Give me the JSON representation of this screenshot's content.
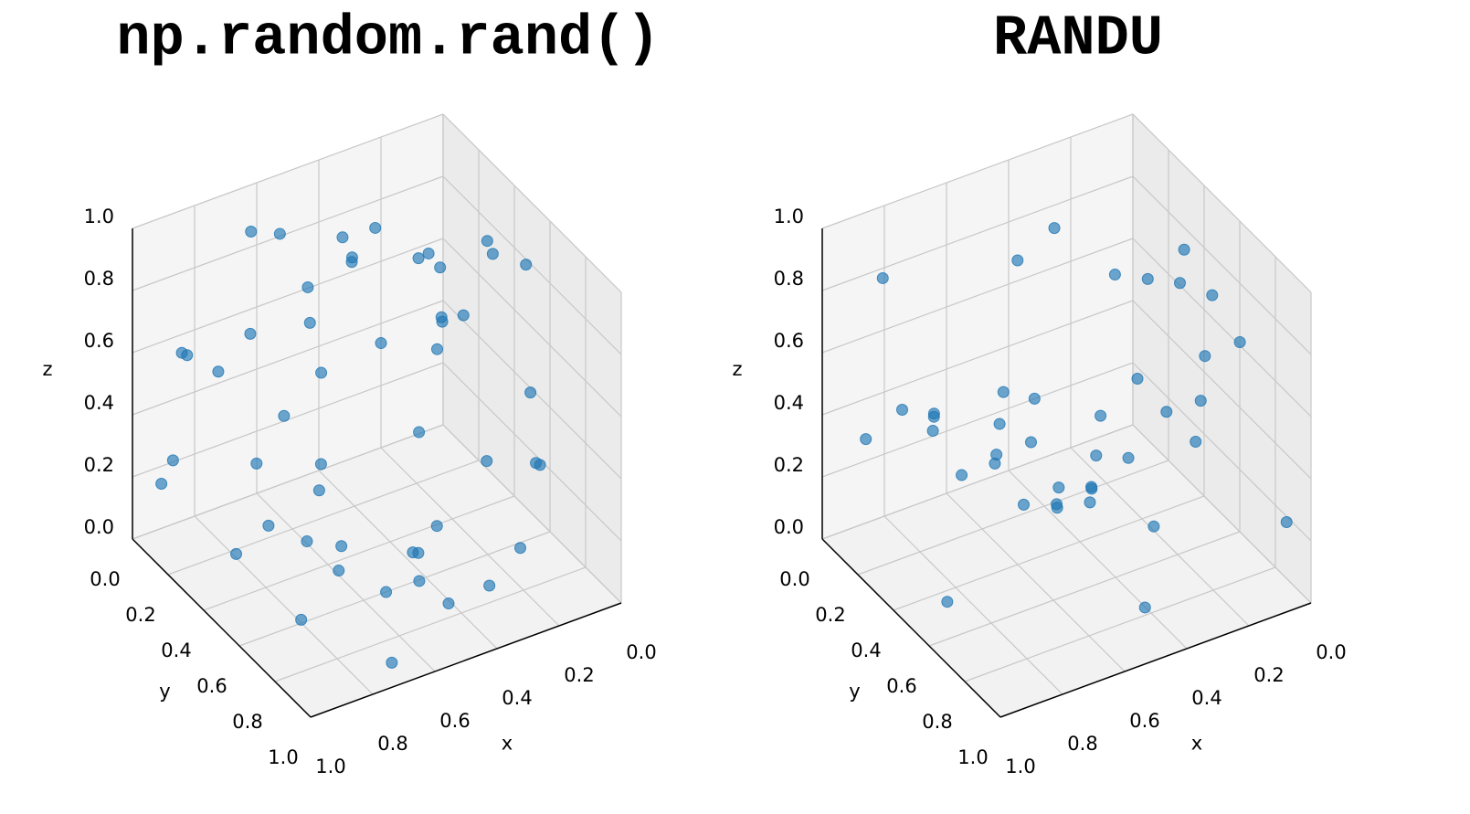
{
  "chart_data": [
    {
      "type": "scatter3d",
      "title": "np.random.rand()",
      "xlabel": "x",
      "ylabel": "y",
      "zlabel": "z",
      "color": "#1f77b4",
      "xlim": [
        0,
        1
      ],
      "ylim": [
        0,
        1
      ],
      "zlim": [
        0,
        1
      ],
      "xticks": [
        {
          "value": 0,
          "label": "0.0"
        },
        0.2,
        0.4,
        0.6,
        0.8,
        {
          "value": 1,
          "label": "1.0"
        }
      ],
      "yticks": [
        {
          "value": 0,
          "label": "0.0"
        },
        0.2,
        0.4,
        0.6,
        0.8,
        {
          "value": 1,
          "label": "1.0"
        }
      ],
      "zticks": [
        {
          "value": 0,
          "label": "0.0"
        },
        0.2,
        0.4,
        0.6,
        0.8,
        {
          "value": 1,
          "label": "1.0"
        }
      ],
      "x": [
        0.12,
        0.85,
        0.43,
        0.67,
        0.21,
        0.93,
        0.38,
        0.55,
        0.07,
        0.76,
        0.31,
        0.62,
        0.49,
        0.88,
        0.15,
        0.71,
        0.26,
        0.59,
        0.97,
        0.04,
        0.81,
        0.35,
        0.47,
        0.68,
        0.19,
        0.53,
        0.91,
        0.28,
        0.74,
        0.09,
        0.64,
        0.41,
        0.83,
        0.23,
        0.57,
        0.16,
        0.79,
        0.33,
        0.95,
        0.51,
        0.02,
        0.69,
        0.45,
        0.87,
        0.13,
        0.6,
        0.37,
        0.78,
        0.25,
        0.99
      ],
      "y": [
        0.73,
        0.22,
        0.58,
        0.09,
        0.91,
        0.46,
        0.15,
        0.82,
        0.37,
        0.64,
        0.03,
        0.51,
        0.29,
        0.77,
        0.18,
        0.95,
        0.42,
        0.68,
        0.11,
        0.56,
        0.33,
        0.87,
        0.06,
        0.49,
        0.61,
        0.24,
        0.79,
        0.35,
        0.97,
        0.14,
        0.53,
        0.71,
        0.4,
        0.02,
        0.86,
        0.27,
        0.63,
        0.44,
        0.19,
        0.92,
        0.5,
        0.31,
        0.75,
        0.08,
        0.66,
        0.13,
        0.89,
        0.38,
        0.55,
        0.21
      ],
      "z": [
        0.34,
        0.61,
        0.08,
        0.92,
        0.47,
        0.19,
        0.75,
        0.26,
        0.83,
        0.52,
        0.67,
        0.13,
        0.95,
        0.39,
        0.71,
        0.04,
        0.58,
        0.87,
        0.23,
        0.44,
        0.78,
        0.11,
        0.65,
        0.32,
        0.97,
        0.5,
        0.16,
        0.84,
        0.29,
        0.62,
        0.07,
        0.89,
        0.41,
        0.73,
        0.2,
        0.56,
        0.98,
        0.35,
        0.69,
        0.14,
        0.81,
        0.46,
        0.27,
        0.59,
        0.03,
        0.91,
        0.53,
        0.18,
        0.76,
        0.37
      ]
    },
    {
      "type": "scatter3d",
      "title": "RANDU",
      "xlabel": "x",
      "ylabel": "y",
      "zlabel": "z",
      "color": "#1f77b4",
      "xlim": [
        0,
        1
      ],
      "ylim": [
        0,
        1
      ],
      "zlim": [
        0,
        1
      ],
      "xticks": [
        {
          "value": 0,
          "label": "0.0"
        },
        0.2,
        0.4,
        0.6,
        0.8,
        {
          "value": 1,
          "label": "1.0"
        }
      ],
      "yticks": [
        {
          "value": 0,
          "label": "0.0"
        },
        0.2,
        0.4,
        0.6,
        0.8,
        {
          "value": 1,
          "label": "1.0"
        }
      ],
      "zticks": [
        {
          "value": 0,
          "label": "0.0"
        },
        0.2,
        0.4,
        0.6,
        0.8,
        {
          "value": 1,
          "label": "1.0"
        }
      ],
      "x": [
        0.1,
        0.5,
        0.25,
        0.8,
        0.33,
        0.62,
        0.05,
        0.91,
        0.44,
        0.17,
        0.73,
        0.58,
        0.29,
        0.96,
        0.12,
        0.67,
        0.38,
        0.85,
        0.21,
        0.54,
        0.03,
        0.77,
        0.46,
        0.89,
        0.15,
        0.69,
        0.31,
        0.6,
        0.08,
        0.94,
        0.41,
        0.71,
        0.19,
        0.52,
        0.84,
        0.27,
        0.64,
        0.36,
        0.99,
        0.02
      ],
      "y": [
        0.2,
        0.3,
        0.7,
        0.1,
        0.55,
        0.84,
        0.95,
        0.47,
        0.12,
        0.38,
        0.66,
        0.05,
        0.91,
        0.27,
        0.59,
        0.42,
        0.78,
        0.93,
        0.16,
        0.71,
        0.34,
        0.22,
        0.87,
        0.51,
        0.08,
        0.97,
        0.44,
        0.63,
        0.74,
        0.14,
        0.29,
        0.81,
        0.52,
        0.18,
        0.69,
        0.03,
        0.35,
        0.98,
        0.61,
        0.48
      ],
      "z": [
        0.3,
        0.3,
        0.95,
        0.4,
        0.33,
        0.46,
        0.25,
        0.63,
        0.76,
        0.75,
        0.39,
        0.08,
        0.85,
        0.98,
        0.46,
        0.49,
        0.26,
        0.93,
        0.07,
        0.4,
        0.77,
        0.39,
        0.08,
        0.05,
        0.13,
        0.61,
        0.85,
        0.38,
        0.72,
        0.38,
        0.05,
        0.47,
        0.41,
        0.4,
        0.58,
        0.75,
        0.34,
        0.64,
        0.75,
        0.7
      ]
    }
  ]
}
